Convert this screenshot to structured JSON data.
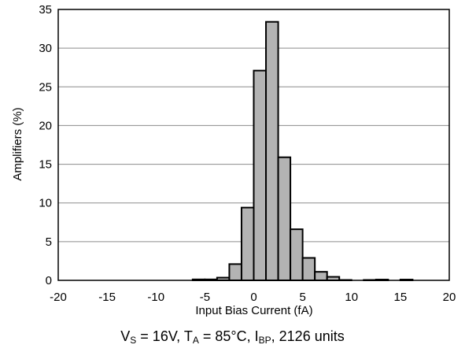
{
  "chart_data": {
    "type": "bar",
    "title": "",
    "xlabel": "Input Bias Current (fA)",
    "ylabel": "Amplifiers (%)",
    "xlim": [
      -20,
      20
    ],
    "ylim": [
      0,
      35
    ],
    "x_ticks": [
      "-20",
      "-15",
      "-10",
      "-5",
      "0",
      "5",
      "10",
      "15",
      "20"
    ],
    "y_ticks": [
      "0",
      "5",
      "10",
      "15",
      "20",
      "25",
      "30",
      "35"
    ],
    "bin_width": 1.25,
    "bins": [
      {
        "x0": -6.25,
        "value": 0.12
      },
      {
        "x0": -5.0,
        "value": 0.12
      },
      {
        "x0": -3.75,
        "value": 0.35
      },
      {
        "x0": -2.5,
        "value": 2.1
      },
      {
        "x0": -1.25,
        "value": 9.4
      },
      {
        "x0": 0.0,
        "value": 27.1
      },
      {
        "x0": 1.25,
        "value": 33.4
      },
      {
        "x0": 2.5,
        "value": 15.9
      },
      {
        "x0": 3.75,
        "value": 6.6
      },
      {
        "x0": 5.0,
        "value": 2.9
      },
      {
        "x0": 6.25,
        "value": 1.1
      },
      {
        "x0": 7.5,
        "value": 0.45
      },
      {
        "x0": 8.75,
        "value": 0.05
      },
      {
        "x0": 11.25,
        "value": 0.05
      },
      {
        "x0": 12.5,
        "value": 0.1
      },
      {
        "x0": 15.0,
        "value": 0.1
      }
    ],
    "bar_color": "#b3b3b3",
    "bar_edge_color": "#000000",
    "grid": true,
    "grid_color": "#8c8c8c",
    "caption": {
      "v_sym": "V",
      "v_sub": "S",
      "v_rest": " = 16V, ",
      "t_sym": "T",
      "t_sub": "A",
      "t_rest": " = 85°C, ",
      "i_sym": "I",
      "i_sub": "BP",
      "i_rest": ", 2126 units"
    }
  }
}
